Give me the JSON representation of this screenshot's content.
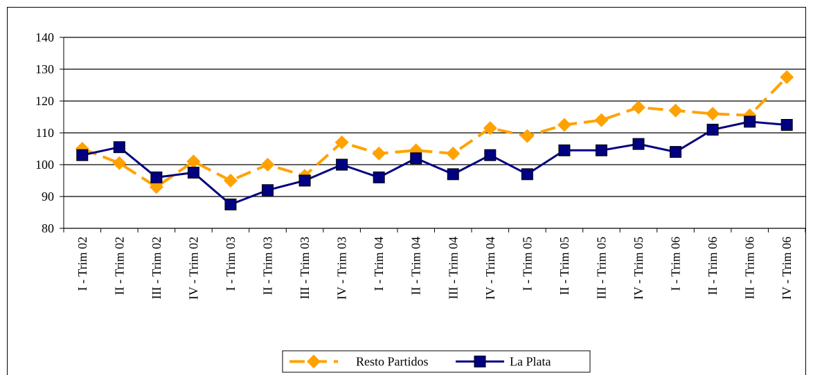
{
  "chart_data": {
    "type": "line",
    "categories": [
      "I - Trim 02",
      "II - Trim 02",
      "III - Trim 02",
      "IV - Trim 02",
      "I - Trim 03",
      "II - Trim 03",
      "III - Trim 03",
      "IV - Trim 03",
      "I - Trim 04",
      "II - Trim 04",
      "III - Trim 04",
      "IV - Trim 04",
      "I - Trim 05",
      "II - Trim 05",
      "III - Trim 05",
      "IV - Trim 05",
      "I - Trim 06",
      "II - Trim 06",
      "III - Trim 06",
      "IV - Trim 06"
    ],
    "series": [
      {
        "name": "Resto Partidos",
        "color": "#ffa200",
        "marker": "diamond",
        "dashed": true,
        "values": [
          105,
          100.5,
          93,
          101,
          95,
          100,
          96.5,
          107,
          103.5,
          104.5,
          103.5,
          111.5,
          109,
          112.5,
          114,
          118,
          117,
          116,
          115.5,
          127.5
        ]
      },
      {
        "name": "La Plata",
        "color": "#000080",
        "marker": "square",
        "dashed": false,
        "values": [
          103,
          105.5,
          96,
          97.5,
          87.5,
          92,
          95,
          100,
          96,
          102,
          97,
          103,
          97,
          104.5,
          104.5,
          106.5,
          104,
          111,
          113.5,
          112.5
        ]
      }
    ],
    "ylim": [
      80,
      140
    ],
    "yticks": [
      80,
      90,
      100,
      110,
      120,
      130,
      140
    ],
    "grid": true,
    "legend": "bottom"
  }
}
